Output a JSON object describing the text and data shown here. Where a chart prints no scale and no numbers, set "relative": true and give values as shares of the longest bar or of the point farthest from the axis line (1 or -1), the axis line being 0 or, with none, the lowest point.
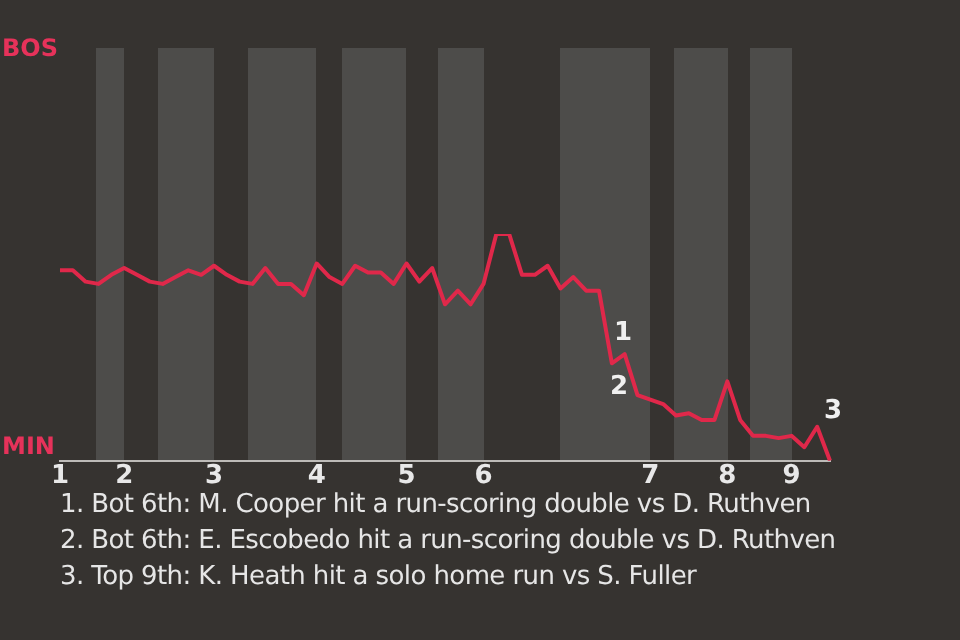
{
  "chart_data": {
    "type": "line",
    "relative": true,
    "categories": [
      "1",
      null,
      null,
      null,
      null,
      "2",
      null,
      null,
      null,
      null,
      null,
      null,
      "3",
      null,
      null,
      null,
      null,
      null,
      null,
      null,
      "4",
      null,
      null,
      null,
      null,
      null,
      null,
      "5",
      null,
      null,
      null,
      null,
      null,
      "6",
      null,
      null,
      null,
      null,
      null,
      null,
      null,
      null,
      null,
      null,
      null,
      null,
      "7",
      null,
      null,
      null,
      null,
      null,
      "8",
      null,
      null,
      null,
      null,
      "9",
      null,
      null,
      null
    ],
    "series": [
      {
        "color": "#e0284a",
        "values": [
          0.84,
          0.84,
          0.79,
          0.78,
          0.82,
          0.85,
          0.82,
          0.79,
          0.78,
          0.81,
          0.84,
          0.82,
          0.86,
          0.82,
          0.79,
          0.78,
          0.85,
          0.78,
          0.78,
          0.73,
          0.87,
          0.81,
          0.78,
          0.86,
          0.83,
          0.83,
          0.78,
          0.87,
          0.79,
          0.85,
          0.69,
          0.75,
          0.69,
          0.78,
          1,
          1,
          0.82,
          0.82,
          0.86,
          0.76,
          0.81,
          0.75,
          0.75,
          0.43,
          0.47,
          0.29,
          0.27,
          0.25,
          0.2,
          0.21,
          0.18,
          0.18,
          0.35,
          0.18,
          0.11,
          0.11,
          0.1,
          0.11,
          0.06,
          0.15,
          0
        ]
      }
    ],
    "legend": false,
    "marker": "none",
    "line_style": "solid",
    "annotations": [
      "BOS",
      "MIN",
      "1",
      "2",
      "3",
      "1. Bot 6th: M. Cooper hit a run-scoring double vs D. Ruthven",
      "2. Bot 6th: E. Escobedo hit a run-scoring double vs D. Ruthven",
      "3. Top 9th: K. Heath hit a solo home run vs S. Fuller"
    ]
  }
}
